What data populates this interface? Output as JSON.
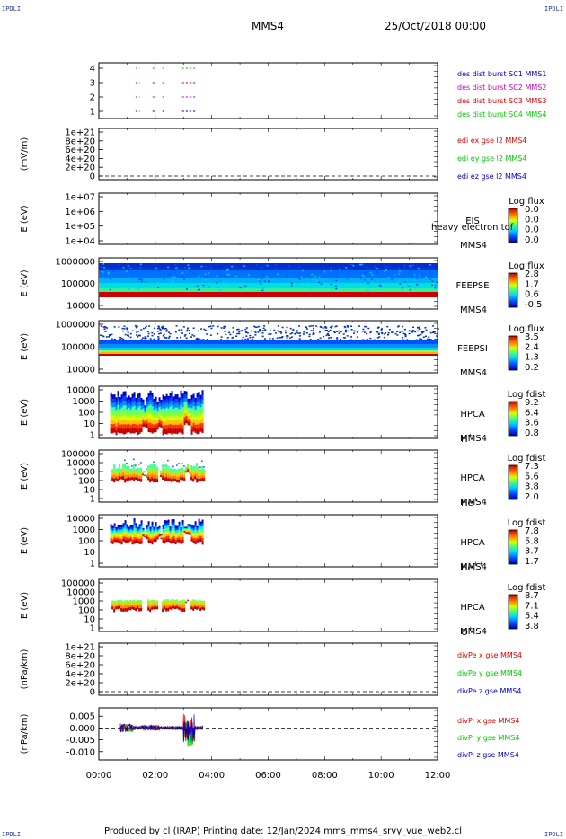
{
  "header": {
    "corner_label": "IPDLI",
    "spacecraft": "MMS4",
    "date": "25/Oct/2018 00:00"
  },
  "footer": {
    "text": "Produced by cl (IRAP)   Printing date: 12/Jan/2024   mms_mms4_srvy_vue_web2.cl"
  },
  "colors": {
    "mms1": "#0000c8",
    "mms2": "#c800c8",
    "mms3": "#dc0000",
    "mms4": "#00c800",
    "x": "#dc0000",
    "y": "#00c800",
    "z": "#0000c8"
  },
  "chart_data": [
    {
      "id": "burst",
      "type": "scatter",
      "y_ticks": [
        "4",
        "3",
        "2",
        "1"
      ],
      "legend": [
        {
          "text": "des dist burst SC1 MMS1",
          "color": "mms1"
        },
        {
          "text": "des dist burst SC2 MMS2",
          "color": "mms2"
        },
        {
          "text": "des dist burst SC3 MMS3",
          "color": "mms3"
        },
        {
          "text": "des dist burst SC4 MMS4",
          "color": "mms4"
        }
      ],
      "series": [
        {
          "level": 4,
          "color": "mms4",
          "segments": [
            [
              1.3,
              1.45
            ],
            [
              1.9,
              2.0
            ],
            [
              2.25,
              2.35
            ],
            [
              2.95,
              3.45
            ]
          ]
        },
        {
          "level": 3,
          "color": "mms3",
          "segments": [
            [
              1.3,
              1.45
            ],
            [
              1.9,
              2.0
            ],
            [
              2.25,
              2.35
            ],
            [
              2.95,
              3.45
            ]
          ]
        },
        {
          "level": 2,
          "color": "mms2",
          "segments": [
            [
              1.3,
              1.45
            ],
            [
              1.9,
              2.0
            ],
            [
              2.25,
              2.35
            ],
            [
              2.95,
              3.45
            ]
          ]
        },
        {
          "level": 1,
          "color": "mms1",
          "segments": [
            [
              1.3,
              1.45
            ],
            [
              1.9,
              2.0
            ],
            [
              2.25,
              2.35
            ],
            [
              2.95,
              3.45
            ]
          ]
        }
      ]
    },
    {
      "id": "edi",
      "type": "line",
      "ylabel": "(mV/m)",
      "y_ticks": [
        "1e+21",
        "8e+20",
        "6e+20",
        "4e+20",
        "2e+20",
        "0"
      ],
      "legend": [
        {
          "text": "edi ex gse l2 MMS4",
          "color": "x"
        },
        {
          "text": "edi ey gse l2 MMS4",
          "color": "y"
        },
        {
          "text": "edi ez gse l2 MMS4",
          "color": "z"
        }
      ],
      "zero_line": true
    },
    {
      "id": "eis",
      "type": "heatmap",
      "ylabel": "E (eV)",
      "y_ticks": [
        "1e+07",
        "1e+06",
        "1e+05",
        "1e+04"
      ],
      "label1": "EIS",
      "label2": "MMS4",
      "overlay": "heavy electron tof",
      "colorbar_title": "Log flux",
      "colorbar_ticks": [
        "0.0",
        "0.0",
        "0.0",
        "0.0"
      ]
    },
    {
      "id": "feepse",
      "type": "heatmap",
      "ylabel": "E (eV)",
      "y_ticks": [
        "1000000",
        "100000",
        "10000"
      ],
      "label1": "FEEPSE",
      "label2": "MMS4",
      "colorbar_title": "Log flux",
      "colorbar_ticks": [
        "2.8",
        "1.7",
        "0.6",
        "-0.5"
      ],
      "time_range": [
        0,
        12
      ]
    },
    {
      "id": "feepsi",
      "type": "heatmap",
      "ylabel": "E (eV)",
      "y_ticks": [
        "1000000",
        "100000",
        "10000"
      ],
      "label1": "FEEPSI",
      "label2": "MMS4",
      "colorbar_title": "Log flux",
      "colorbar_ticks": [
        "3.5",
        "2.4",
        "1.3",
        "0.2"
      ],
      "time_range": [
        0,
        12
      ]
    },
    {
      "id": "hpca_h",
      "type": "heatmap",
      "ylabel": "E (eV)",
      "y_ticks": [
        "10000",
        "1000",
        "100",
        "10",
        "1"
      ],
      "label1": "HPCA",
      "label2": "MMS4",
      "species": "H",
      "species_sup": "+",
      "colorbar_title": "Log fdist",
      "colorbar_ticks": [
        "9.2",
        "6.4",
        "3.6",
        "0.8"
      ],
      "time_range": [
        0.4,
        3.7
      ]
    },
    {
      "id": "hpca_he",
      "type": "heatmap",
      "ylabel": "E (eV)",
      "y_ticks": [
        "100000",
        "10000",
        "1000",
        "100",
        "10",
        "1"
      ],
      "label1": "HPCA",
      "label2": "MMS4",
      "species": "He",
      "species_sup": "+",
      "colorbar_title": "Log fdist",
      "colorbar_ticks": [
        "7.3",
        "5.6",
        "3.8",
        "2.0"
      ],
      "time_range": [
        0.45,
        3.7
      ]
    },
    {
      "id": "hpca_hepp",
      "type": "heatmap",
      "ylabel": "E (eV)",
      "y_ticks": [
        "10000",
        "1000",
        "100",
        "10",
        "1"
      ],
      "label1": "HPCA",
      "label2": "MMS4",
      "species": "He",
      "species_sup": "++",
      "colorbar_title": "Log fdist",
      "colorbar_ticks": [
        "7.8",
        "5.8",
        "3.7",
        "1.7"
      ],
      "time_range": [
        0.4,
        3.7
      ]
    },
    {
      "id": "hpca_o",
      "type": "heatmap",
      "ylabel": "E (eV)",
      "y_ticks": [
        "100000",
        "10000",
        "1000",
        "100",
        "10",
        "1"
      ],
      "label1": "HPCA",
      "label2": "MMS4",
      "species": "O",
      "species_sup": "+",
      "colorbar_title": "Log fdist",
      "colorbar_ticks": [
        "8.7",
        "7.1",
        "5.4",
        "3.8"
      ],
      "time_range": [
        0.45,
        3.7
      ]
    },
    {
      "id": "divpe",
      "type": "line",
      "ylabel": "(nPa/km)",
      "y_ticks": [
        "1e+21",
        "8e+20",
        "6e+20",
        "4e+20",
        "2e+20",
        "0"
      ],
      "legend": [
        {
          "text": "divPe x gse MMS4",
          "color": "x"
        },
        {
          "text": "divPe y gse MMS4",
          "color": "y"
        },
        {
          "text": "divPe z gse MMS4",
          "color": "z"
        }
      ],
      "zero_line": true
    },
    {
      "id": "divpi",
      "type": "line",
      "ylabel": "(nPa/km)",
      "y_ticks": [
        "0.005",
        "0.000",
        "-0.005",
        "-0.010"
      ],
      "y_tick_values": [
        0.005,
        0.0,
        -0.005,
        -0.01
      ],
      "ylim": [
        -0.0135,
        0.0085
      ],
      "legend": [
        {
          "text": "divPi x gse MMS4",
          "color": "x"
        },
        {
          "text": "divPi y gse MMS4",
          "color": "y"
        },
        {
          "text": "divPi z gse MMS4",
          "color": "z"
        }
      ],
      "zero_line": true,
      "time_range": [
        0.75,
        3.7
      ]
    },
    {
      "id": "time_axis",
      "type": "axis",
      "x_ticks": [
        "00:00",
        "02:00",
        "04:00",
        "06:00",
        "08:00",
        "10:00",
        "12:00"
      ],
      "xlim": [
        0,
        12
      ]
    }
  ]
}
